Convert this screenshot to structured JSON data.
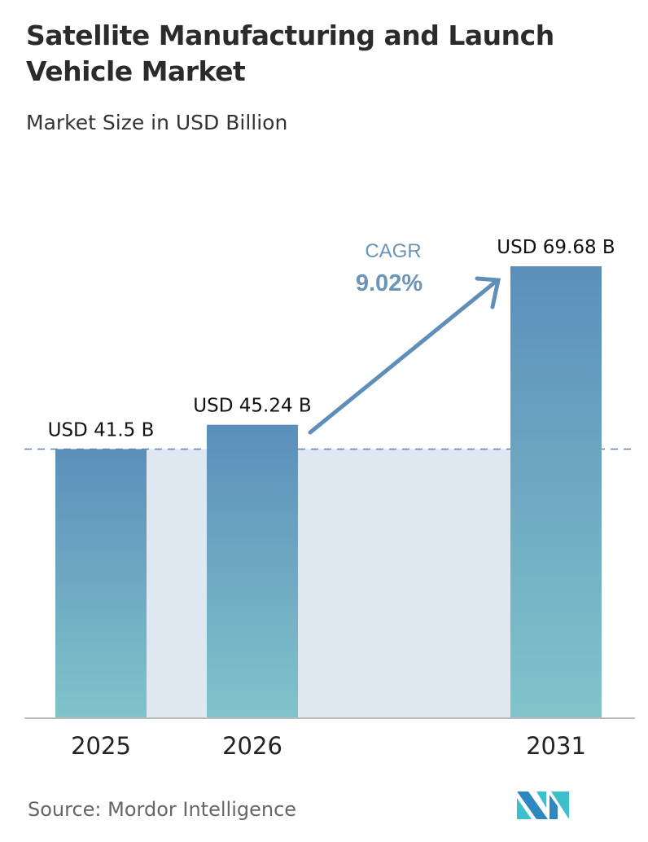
{
  "chart_data": {
    "type": "bar",
    "title": "Satellite Manufacturing and Launch Vehicle Market",
    "subtitle": "Market Size in USD Billion",
    "categories": [
      "2025",
      "2026",
      "2031"
    ],
    "values": [
      41.5,
      45.24,
      69.68
    ],
    "data_labels": [
      "USD 41.5 B",
      "USD 45.24 B",
      "USD 69.68 B"
    ],
    "xlabel": "",
    "ylabel": "",
    "ylim": [
      0,
      69.68
    ],
    "grid": false,
    "annotation": {
      "label": "CAGR",
      "value": "9.02%"
    },
    "colors": {
      "bar_top": "#5b8fbb",
      "bar_bottom": "#7fc3c9",
      "band": "#dfe8f1",
      "accent": "#5b8bb3"
    }
  },
  "source": "Source:  Mordor Intelligence",
  "logo": "Mordor Intelligence"
}
